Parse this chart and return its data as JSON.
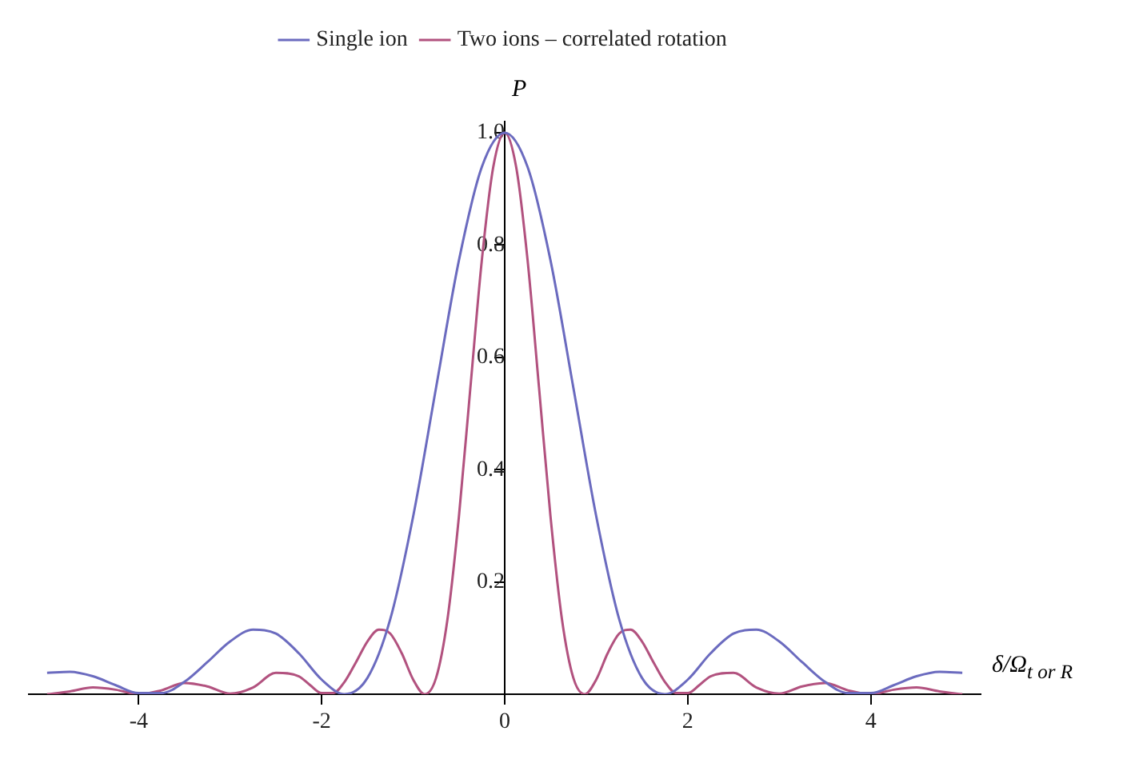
{
  "chart_data": {
    "type": "line",
    "xlabel": "δ/Ω$_{t or R}$",
    "ylabel": "P",
    "series": [
      {
        "name": "Single ion",
        "color": "#6b6bbf",
        "x": [
          -5,
          -4.75,
          -4.5,
          -4.25,
          -4,
          -3.75,
          -3.5,
          -3.25,
          -3,
          -2.75,
          -2.5,
          -2.25,
          -2,
          -1.75,
          -1.5,
          -1.25,
          -1,
          -0.75,
          -0.5,
          -0.25,
          0,
          0.25,
          0.5,
          0.75,
          1,
          1.25,
          1.5,
          1.75,
          2,
          2.25,
          2.5,
          2.75,
          3,
          3.25,
          3.5,
          3.75,
          4,
          4.25,
          4.5,
          4.75,
          5
        ],
        "values": [
          0.038,
          0.04,
          0.032,
          0.016,
          0.002,
          0.002,
          0.022,
          0.057,
          0.094,
          0.115,
          0.108,
          0.073,
          0.026,
          0,
          0.029,
          0.134,
          0.317,
          0.546,
          0.773,
          0.939,
          1,
          0.939,
          0.773,
          0.546,
          0.317,
          0.134,
          0.029,
          0,
          0.026,
          0.073,
          0.108,
          0.115,
          0.094,
          0.057,
          0.022,
          0.002,
          0.002,
          0.016,
          0.032,
          0.04,
          0.038
        ]
      },
      {
        "name": "Two ions – correlated rotation",
        "color": "#b2527f",
        "x": [
          -5,
          -4.75,
          -4.5,
          -4.25,
          -4,
          -3.75,
          -3.5,
          -3.25,
          -3,
          -2.75,
          -2.5,
          -2.25,
          -2.125,
          -2,
          -1.875,
          -1.75,
          -1.625,
          -1.5,
          -1.375,
          -1.25,
          -1.125,
          -1,
          -0.875,
          -0.75,
          -0.625,
          -0.5,
          -0.375,
          -0.25,
          -0.125,
          0,
          0.125,
          0.25,
          0.375,
          0.5,
          0.625,
          0.75,
          0.875,
          1,
          1.125,
          1.25,
          1.375,
          1.5,
          1.625,
          1.75,
          1.875,
          2,
          2.125,
          2.25,
          2.5,
          2.75,
          3,
          3.25,
          3.5,
          3.75,
          4,
          4.25,
          4.5,
          4.75,
          5
        ],
        "values": [
          0,
          0.005,
          0.012,
          0.008,
          0,
          0.007,
          0.02,
          0.014,
          0.001,
          0.012,
          0.038,
          0.032,
          0.016,
          0.002,
          0.002,
          0.022,
          0.057,
          0.094,
          0.115,
          0.108,
          0.073,
          0.026,
          0,
          0.029,
          0.134,
          0.317,
          0.546,
          0.773,
          0.939,
          1,
          0.939,
          0.773,
          0.546,
          0.317,
          0.134,
          0.029,
          0,
          0.026,
          0.073,
          0.108,
          0.115,
          0.094,
          0.057,
          0.022,
          0.002,
          0.002,
          0.016,
          0.032,
          0.038,
          0.012,
          0.001,
          0.014,
          0.02,
          0.007,
          0,
          0.008,
          0.012,
          0.005,
          0
        ]
      }
    ],
    "xlim": [
      -5.2,
      5.2
    ],
    "ylim": [
      0,
      1.02
    ],
    "xticks": [
      -4,
      -2,
      0,
      2,
      4
    ],
    "yticks": [
      0.2,
      0.4,
      0.6,
      0.8,
      {
        "value": 1,
        "label": "1.0"
      }
    ],
    "grid": false,
    "legend": "top",
    "marker": "none",
    "line_style": "solid"
  }
}
